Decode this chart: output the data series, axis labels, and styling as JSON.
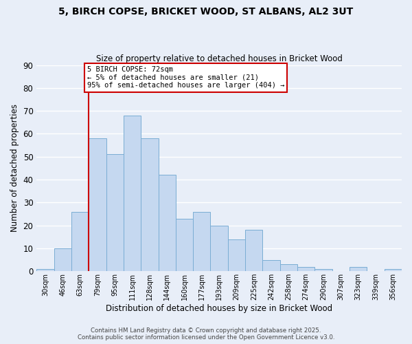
{
  "title_line1": "5, BIRCH COPSE, BRICKET WOOD, ST ALBANS, AL2 3UT",
  "title_line2": "Size of property relative to detached houses in Bricket Wood",
  "xlabel": "Distribution of detached houses by size in Bricket Wood",
  "ylabel": "Number of detached properties",
  "bar_labels": [
    "30sqm",
    "46sqm",
    "63sqm",
    "79sqm",
    "95sqm",
    "111sqm",
    "128sqm",
    "144sqm",
    "160sqm",
    "177sqm",
    "193sqm",
    "209sqm",
    "225sqm",
    "242sqm",
    "258sqm",
    "274sqm",
    "290sqm",
    "307sqm",
    "323sqm",
    "339sqm",
    "356sqm"
  ],
  "bar_values": [
    1,
    10,
    26,
    58,
    51,
    68,
    58,
    42,
    23,
    26,
    20,
    14,
    18,
    5,
    3,
    2,
    1,
    0,
    2,
    0,
    1
  ],
  "bar_color": "#c5d8f0",
  "bar_edge_color": "#7aadd4",
  "ylim": [
    0,
    90
  ],
  "yticks": [
    0,
    10,
    20,
    30,
    40,
    50,
    60,
    70,
    80,
    90
  ],
  "vline_color": "#cc0000",
  "vline_x_index": 3,
  "annotation_text": "5 BIRCH COPSE: 72sqm\n← 5% of detached houses are smaller (21)\n95% of semi-detached houses are larger (404) →",
  "annotation_box_edge": "#cc0000",
  "footer_line1": "Contains HM Land Registry data © Crown copyright and database right 2025.",
  "footer_line2": "Contains public sector information licensed under the Open Government Licence v3.0.",
  "background_color": "#e8eef8",
  "grid_color": "#ffffff"
}
